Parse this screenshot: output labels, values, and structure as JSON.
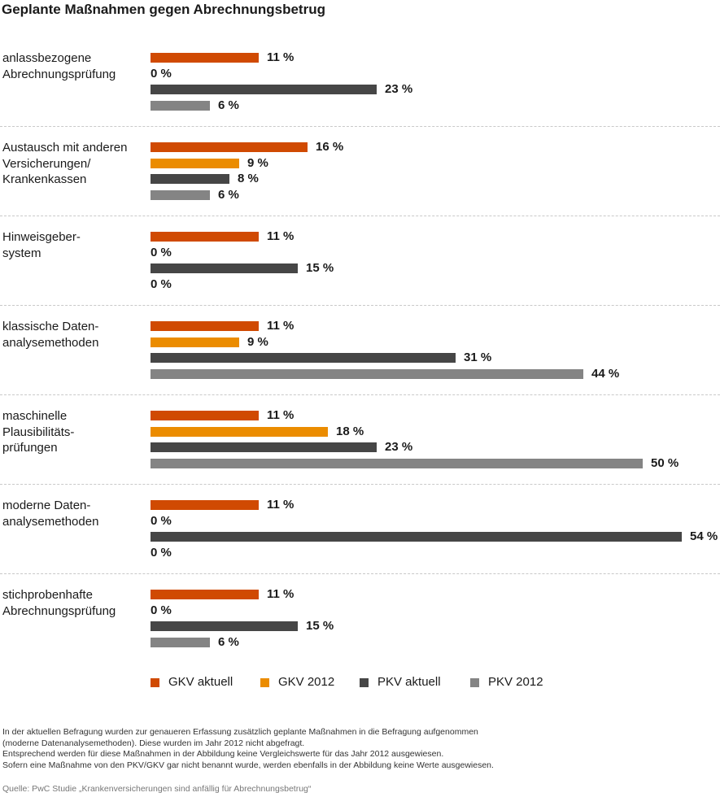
{
  "chart_data": {
    "type": "bar",
    "orientation": "horizontal",
    "title": "Geplante Maßnahmen gegen Abrechnungsbetrug",
    "categories": [
      "anlassbezogene\nAbrechnungsprüfung",
      "Austausch mit anderen\nVersicherungen/\nKrankenkassen",
      "Hinweisgeber-\nsystem",
      "klassische Daten-\nanalysemethoden",
      "maschinelle\nPlausibilitäts-\nprüfungen",
      "moderne Daten-\nanalysemethoden",
      "stichprobenhafte\nAbrechnungsprüfung"
    ],
    "value_labels": [
      [
        "11 %",
        "0 %",
        "23 %",
        "6 %"
      ],
      [
        "16 %",
        "9 %",
        "8 %",
        "6 %"
      ],
      [
        "11 %",
        "0 %",
        "15 %",
        "0 %"
      ],
      [
        "11 %",
        "9 %",
        "31 %",
        "44 %"
      ],
      [
        "11 %",
        "18 %",
        "23 %",
        "50 %"
      ],
      [
        "11 %",
        "0 %",
        "54 %",
        "0 %"
      ],
      [
        "11 %",
        "0 %",
        "15 %",
        "6 %"
      ]
    ],
    "series": [
      {
        "name": "GKV aktuell",
        "color": "#d04a02",
        "values": [
          11,
          16,
          11,
          11,
          11,
          11,
          11
        ]
      },
      {
        "name": "GKV 2012",
        "color": "#eb8c00",
        "values": [
          0,
          9,
          0,
          9,
          18,
          0,
          0
        ]
      },
      {
        "name": "PKV aktuell",
        "color": "#464646",
        "values": [
          23,
          8,
          15,
          31,
          23,
          54,
          15
        ]
      },
      {
        "name": "PKV 2012",
        "color": "#848484",
        "values": [
          6,
          6,
          0,
          44,
          50,
          0,
          6
        ]
      }
    ],
    "xlim": [
      0,
      54
    ],
    "unit": "%",
    "grid": false,
    "legend_position": "bottom"
  },
  "footnotes": [
    "In der aktuellen Befragung wurden zur genaueren Erfassung zusätzlich geplante Maßnahmen in die Befragung aufgenommen",
    "(moderne Datenanalysemethoden). Diese wurden im Jahr 2012 nicht abgefragt.",
    "Entsprechend werden für diese Maßnahmen in der Abbildung keine Vergleichswerte für das Jahr 2012 ausgewiesen.",
    "Sofern eine Maßnahme von den PKV/GKV gar nicht benannt wurde, werden ebenfalls in der Abbildung keine Werte ausgewiesen."
  ],
  "source": "Quelle: PwC Studie „Krankenversicherungen sind anfällig für Abrechnungsbetrug“"
}
